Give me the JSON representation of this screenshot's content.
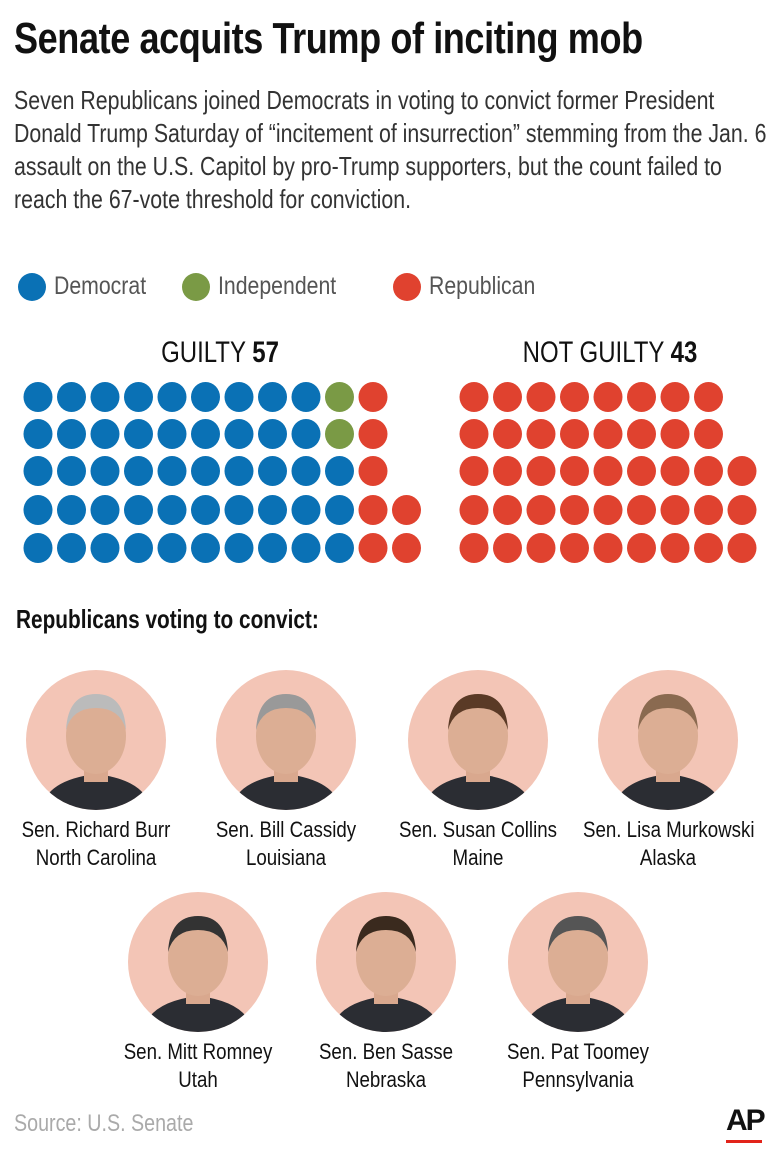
{
  "title": "Senate acquits Trump of inciting mob",
  "subtitle": "Seven Republicans joined Democrats in voting to convict former President Donald Trump Saturday of “incitement of insurrection” stemming from the Jan. 6 assault on the U.S. Capitol by pro-Trump supporters, but the count failed to reach the 67-vote threshold for conviction.",
  "legend": [
    {
      "label": "Democrat",
      "color": "#0a71b5"
    },
    {
      "label": "Independent",
      "color": "#7a9a45"
    },
    {
      "label": "Republican",
      "color": "#e0422f"
    }
  ],
  "chart_data": {
    "type": "waffle",
    "groups": [
      {
        "label": "GUILTY",
        "total": "57",
        "counts": {
          "Democrat": 48,
          "Independent": 2,
          "Republican": 7
        },
        "rows": [
          {
            "Democrat": 9,
            "Independent": 1,
            "Republican": 1
          },
          {
            "Democrat": 9,
            "Independent": 1,
            "Republican": 1
          },
          {
            "Democrat": 10,
            "Independent": 0,
            "Republican": 1
          },
          {
            "Democrat": 10,
            "Independent": 0,
            "Republican": 2
          },
          {
            "Democrat": 10,
            "Independent": 0,
            "Republican": 2
          }
        ]
      },
      {
        "label": "NOT GUILTY",
        "total": "43",
        "counts": {
          "Democrat": 0,
          "Independent": 0,
          "Republican": 43
        },
        "rows": [
          {
            "Democrat": 0,
            "Independent": 0,
            "Republican": 8
          },
          {
            "Democrat": 0,
            "Independent": 0,
            "Republican": 8
          },
          {
            "Democrat": 0,
            "Independent": 0,
            "Republican": 9
          },
          {
            "Democrat": 0,
            "Independent": 0,
            "Republican": 9
          },
          {
            "Democrat": 0,
            "Independent": 0,
            "Republican": 9
          }
        ]
      }
    ]
  },
  "convict_heading": "Republicans voting to convict:",
  "senators": [
    {
      "name": "Sen. Richard Burr",
      "state": "North Carolina"
    },
    {
      "name": "Sen. Bill Cassidy",
      "state": "Louisiana"
    },
    {
      "name": "Sen. Susan Collins",
      "state": "Maine"
    },
    {
      "name": "Sen. Lisa Murkowski",
      "state": "Alaska"
    },
    {
      "name": "Sen. Mitt Romney",
      "state": "Utah"
    },
    {
      "name": "Sen. Ben Sasse",
      "state": "Nebraska"
    },
    {
      "name": "Sen. Pat Toomey",
      "state": "Pennsylvania"
    }
  ],
  "source": "Source: U.S. Senate",
  "logo": "AP"
}
